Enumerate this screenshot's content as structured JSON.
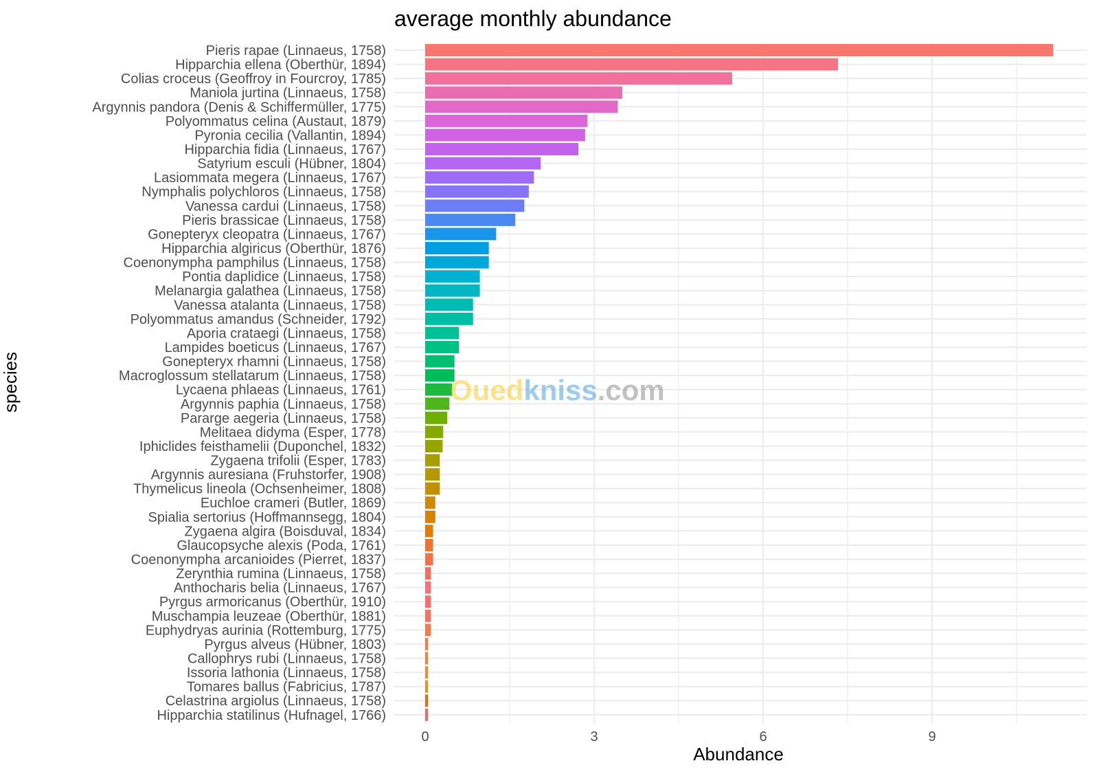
{
  "chart_data": {
    "type": "bar",
    "orientation": "horizontal",
    "title": "average monthly abundance",
    "xlabel": "Abundance",
    "ylabel": "species",
    "xlim": [
      0,
      11.7
    ],
    "xticks": [
      0,
      3,
      6,
      9
    ],
    "grid": true,
    "legend": "none",
    "categories": [
      "Pieris rapae (Linnaeus, 1758)",
      "Hipparchia ellena (Oberthür, 1894)",
      "Colias croceus (Geoffroy in Fourcroy, 1785)",
      "Maniola jurtina (Linnaeus, 1758)",
      "Argynnis pandora (Denis & Schiffermüller, 1775)",
      "Polyommatus celina (Austaut, 1879)",
      "Pyronia cecilia (Vallantin, 1894)",
      "Hipparchia fidia (Linnaeus, 1767)",
      "Satyrium esculi (Hübner, 1804)",
      "Lasiommata megera (Linnaeus, 1767)",
      "Nymphalis polychloros (Linnaeus, 1758)",
      "Vanessa cardui (Linnaeus, 1758)",
      "Pieris brassicae (Linnaeus, 1758)",
      "Gonepteryx cleopatra (Linnaeus, 1767)",
      "Hipparchia algiricus (Oberthür, 1876)",
      "Coenonympha pamphilus (Linnaeus, 1758)",
      "Pontia daplidice (Linnaeus, 1758)",
      "Melanargia galathea (Linnaeus, 1758)",
      "Vanessa atalanta (Linnaeus, 1758)",
      "Polyommatus amandus (Schneider, 1792)",
      "Aporia crataegi (Linnaeus, 1758)",
      "Lampides boeticus (Linnaeus, 1767)",
      "Gonepteryx rhamni (Linnaeus, 1758)",
      "Macroglossum stellatarum (Linnaeus, 1758)",
      "Lycaena phlaeas (Linnaeus, 1761)",
      "Argynnis paphia (Linnaeus, 1758)",
      "Pararge aegeria (Linnaeus, 1758)",
      "Melitaea didyma (Esper, 1778)",
      "Iphiclides feisthamelii (Duponchel, 1832)",
      "Zygaena trifolii (Esper, 1783)",
      "Argynnis auresiana (Fruhstorfer, 1908)",
      "Thymelicus lineola (Ochsenheimer, 1808)",
      "Euchloe crameri (Butler, 1869)",
      "Spialia sertorius (Hoffmannsegg, 1804)",
      "Zygaena algira (Boisduval, 1834)",
      "Glaucopsyche alexis (Poda, 1761)",
      "Coenonympha arcanioides (Pierret, 1837)",
      "Zerynthia rumina (Linnaeus, 1758)",
      "Anthocharis belia (Linnaeus, 1767)",
      "Pyrgus armoricanus (Oberthür, 1910)",
      "Muschampia leuzeae (Oberthür, 1881)",
      "Euphydryas aurinia (Rottemburg, 1775)",
      "Pyrgus alveus (Hübner, 1803)",
      "Callophrys rubi (Linnaeus, 1758)",
      "Issoria lathonia (Linnaeus, 1758)",
      "Tomares ballus (Fabricius, 1787)",
      "Celastrina argiolus (Linnaeus, 1758)",
      "Hipparchia statilinus (Hufnagel, 1766)"
    ],
    "values": [
      11.15,
      7.33,
      5.45,
      3.5,
      3.42,
      2.88,
      2.84,
      2.72,
      2.05,
      1.93,
      1.84,
      1.76,
      1.6,
      1.26,
      1.13,
      1.13,
      0.97,
      0.97,
      0.85,
      0.85,
      0.6,
      0.6,
      0.52,
      0.52,
      0.48,
      0.43,
      0.39,
      0.32,
      0.31,
      0.26,
      0.26,
      0.26,
      0.18,
      0.18,
      0.14,
      0.14,
      0.14,
      0.1,
      0.1,
      0.1,
      0.1,
      0.1,
      0.05,
      0.05,
      0.05,
      0.05,
      0.05,
      0.05
    ],
    "colors": [
      "#F8766D",
      "#F67585",
      "#F1719D",
      "#EA6DB4",
      "#E369C8",
      "#DB66D8",
      "#D063E4",
      "#C363EC",
      "#B266F1",
      "#9E6CF4",
      "#8773F6",
      "#6C7DF5",
      "#4A89F2",
      "#1B94EC",
      "#009FE4",
      "#00A8DA",
      "#00B0CF",
      "#00B6C2",
      "#00BBB4",
      "#00BEA5",
      "#00C095",
      "#00C083",
      "#00BF70",
      "#00BC5A",
      "#1DB940",
      "#4FB51B",
      "#6DB000",
      "#83AA00",
      "#96A400",
      "#A79E00",
      "#B59700",
      "#C29000",
      "#CD8A00",
      "#D88300",
      "#E17C00",
      "#E9762E",
      "#F0714A",
      "#F66D5E",
      "#F7707A",
      "#F76C6C",
      "#F5735F",
      "#F27B52",
      "#EF8145",
      "#EC8839",
      "#E88E2D",
      "#E49421",
      "#E07113",
      "#DC6F6F"
    ]
  },
  "watermark": {
    "part1": "Oued",
    "part2": "kniss",
    "part3": ".com",
    "color1": "#F4C200",
    "color2": "#2E8FD6",
    "color3": "#7a7a7a"
  }
}
